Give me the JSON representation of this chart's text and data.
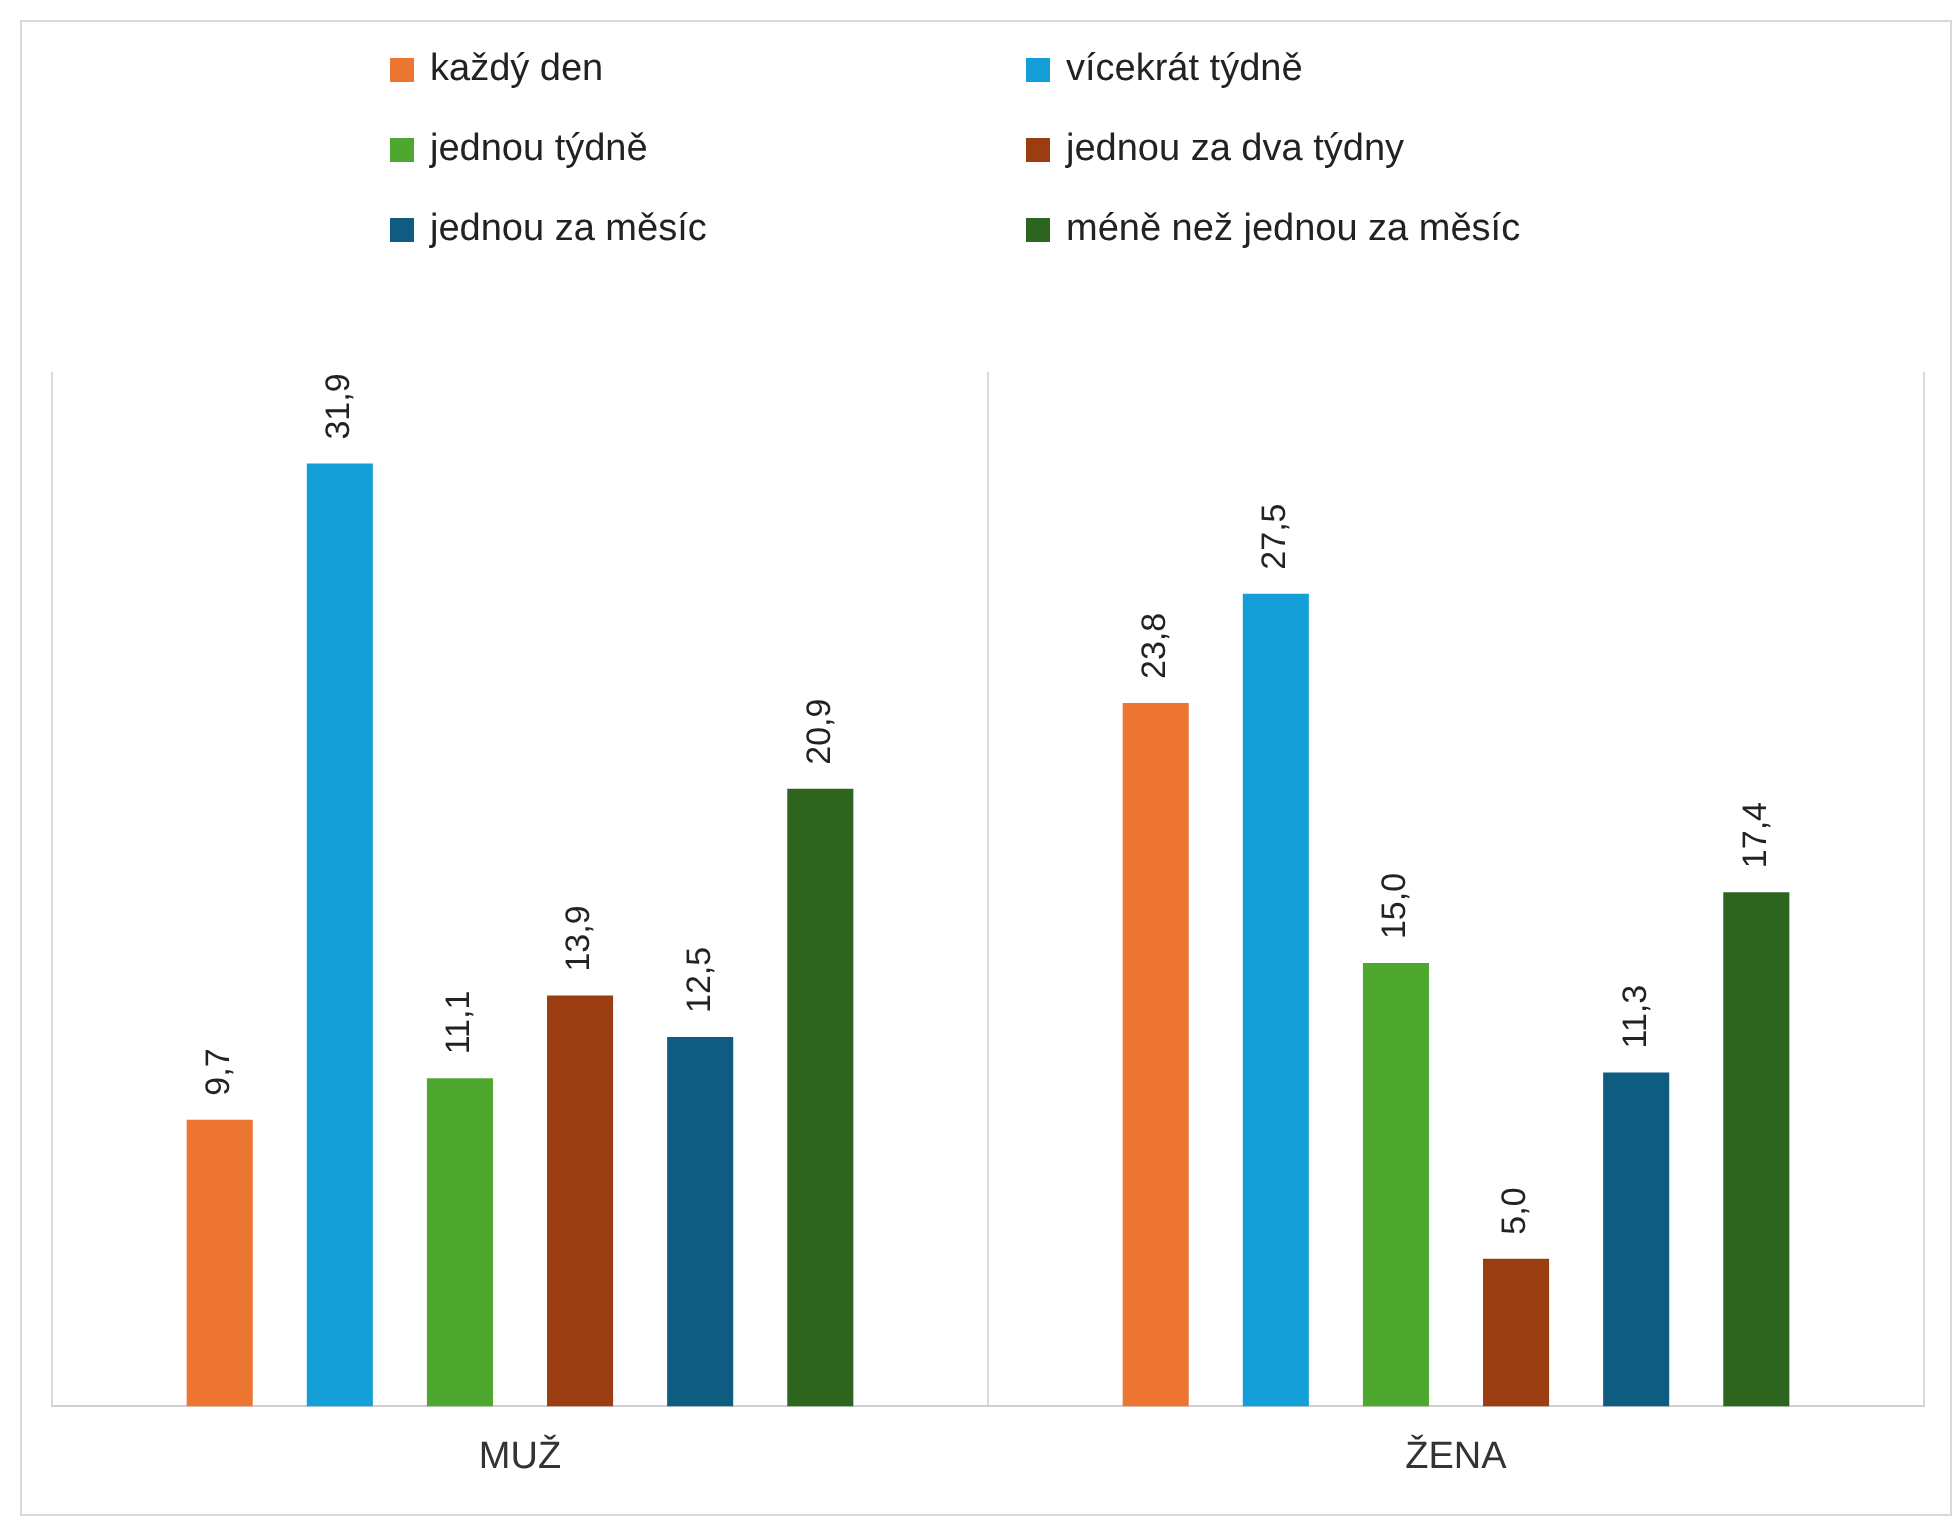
{
  "chart_data": {
    "type": "bar",
    "categories": [
      "MUŽ",
      "ŽENA"
    ],
    "series": [
      {
        "name": "každý den",
        "color": "#ed7532",
        "values": [
          9.7,
          23.8
        ],
        "value_labels": [
          "9,7",
          "23,8"
        ]
      },
      {
        "name": "vícekrát týdně",
        "color": "#149fd8",
        "values": [
          31.9,
          27.5
        ],
        "value_labels": [
          "31,9",
          "27,5"
        ]
      },
      {
        "name": "jednou týdně",
        "color": "#4ea72e",
        "values": [
          11.1,
          15.0
        ],
        "value_labels": [
          "11,1",
          "15,0"
        ]
      },
      {
        "name": "jednou za dva týdny",
        "color": "#9a3d10",
        "values": [
          13.9,
          5.0
        ],
        "value_labels": [
          "13,9",
          "5,0"
        ]
      },
      {
        "name": "jednou za měsíc",
        "color": "#0e5d80",
        "values": [
          12.5,
          11.3
        ],
        "value_labels": [
          "12,5",
          "11,3"
        ]
      },
      {
        "name": "méně než jednou za měsíc",
        "color": "#2d651f",
        "values": [
          20.9,
          17.4
        ],
        "value_labels": [
          "20,9",
          "17,4"
        ]
      }
    ],
    "legend": "top",
    "grid": "x"
  }
}
